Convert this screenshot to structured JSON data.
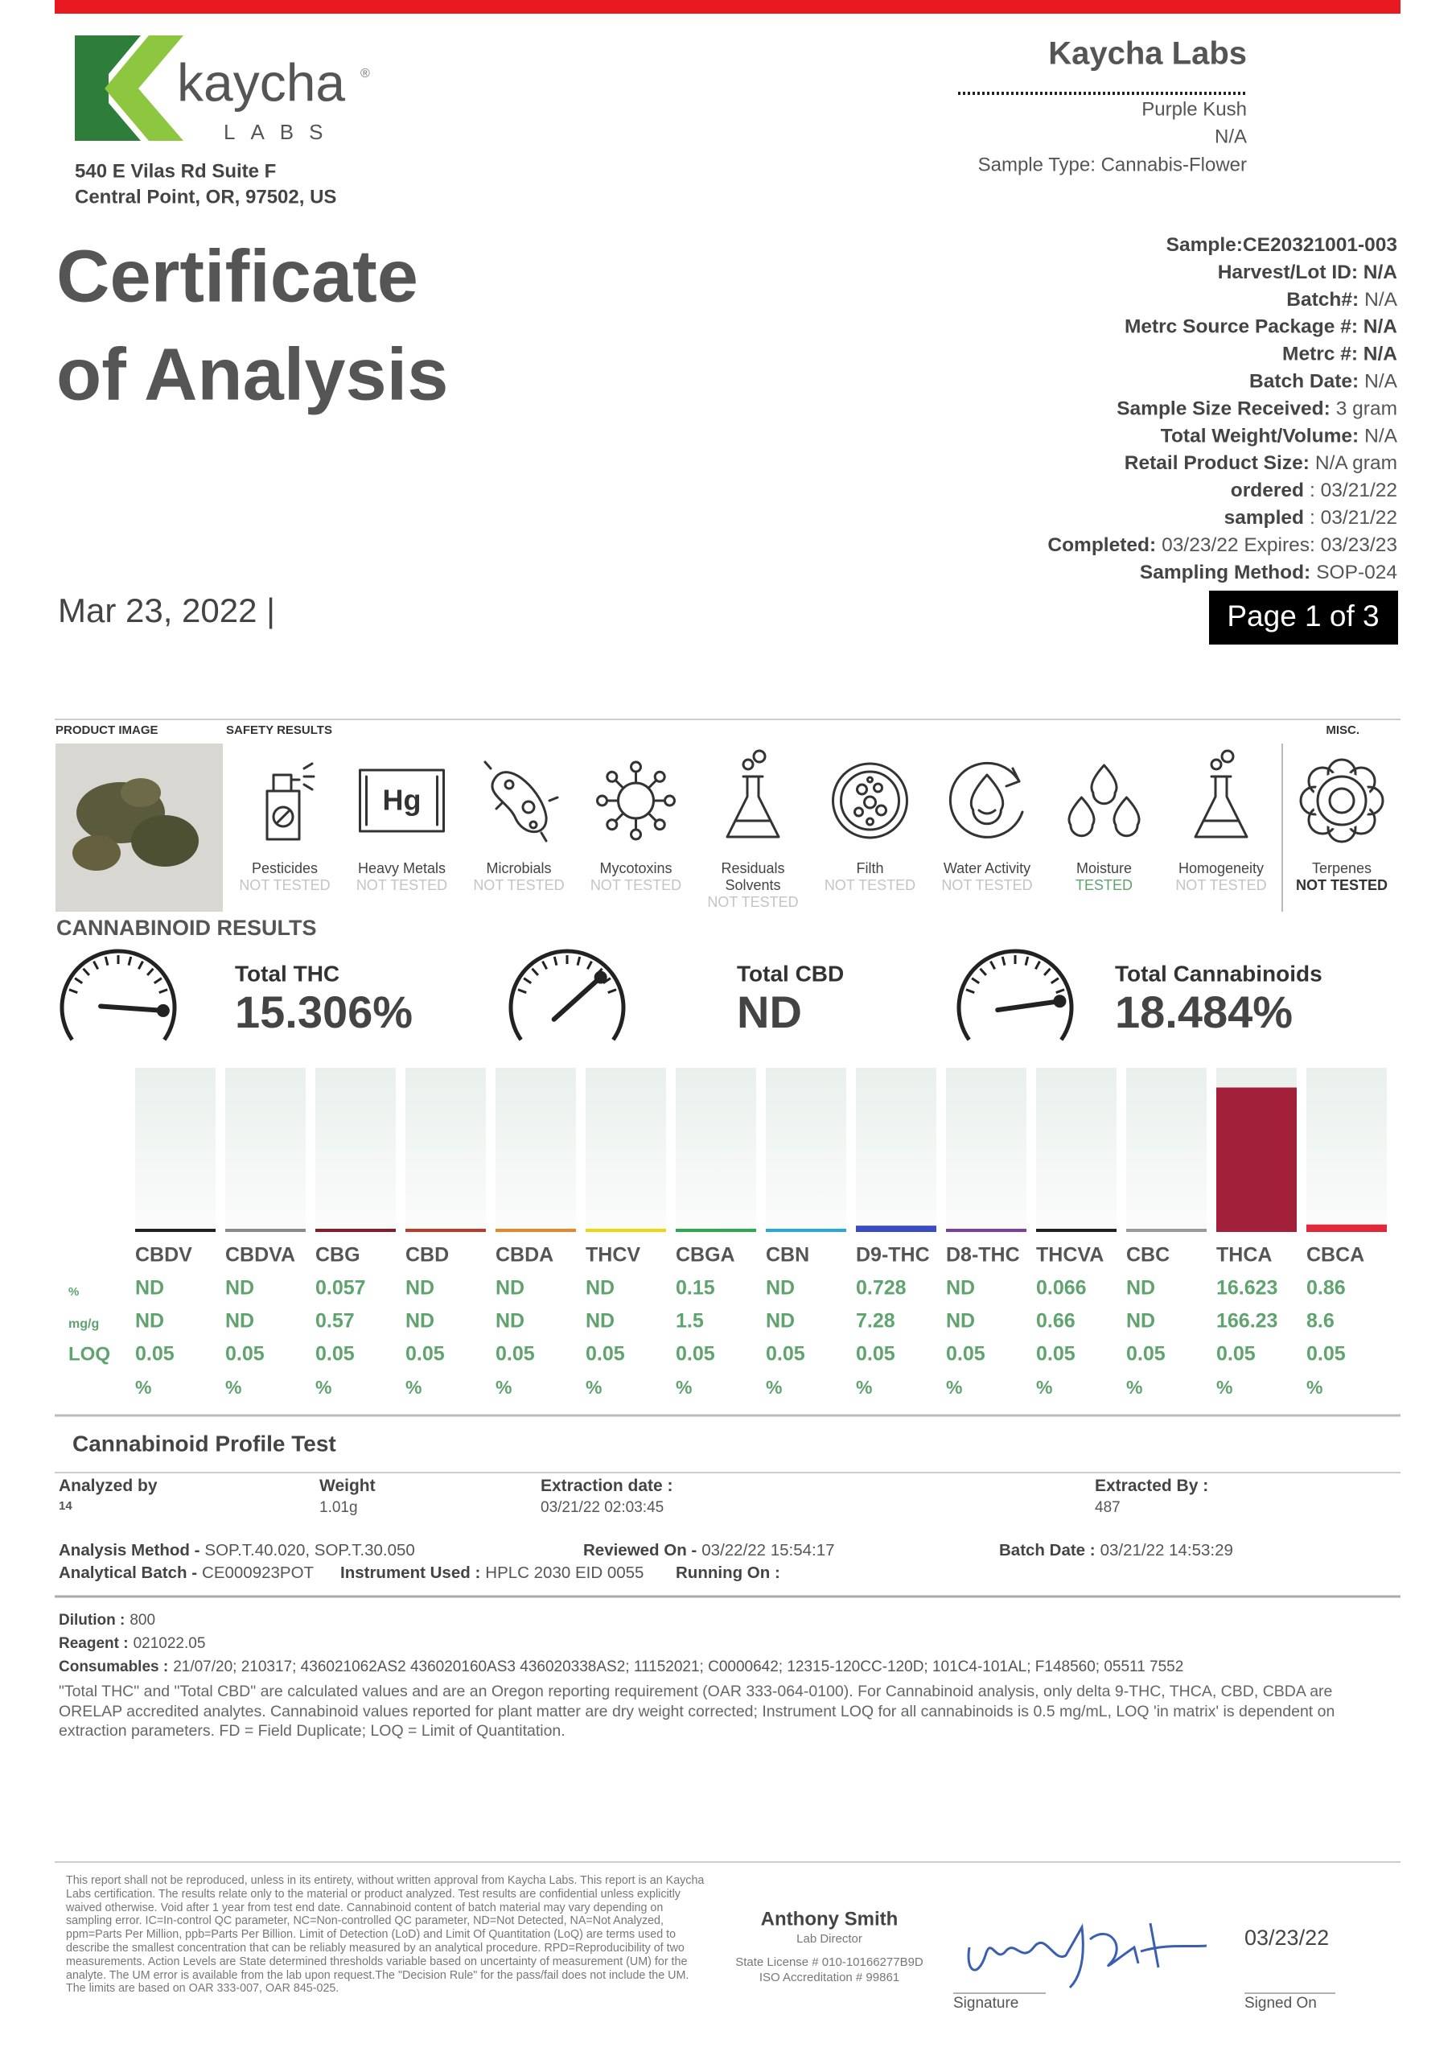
{
  "header": {
    "logo": {
      "name": "kaycha",
      "mark": "®",
      "sub": "LABS"
    },
    "address": [
      "540 E Vilas Rd Suite F",
      "Central Point, OR, 97502, US"
    ],
    "title": [
      "Certificate",
      "of Analysis"
    ],
    "date": "Mar 23, 2022 |",
    "lab": "Kaycha Labs",
    "product": "Purple Kush",
    "strain": "N/A",
    "sample_type": "Sample Type: Cannabis-Flower",
    "page": "Page 1 of 3"
  },
  "sample_info": [
    {
      "label": "Sample:CE20321001-003"
    },
    {
      "label": "Harvest/Lot ID: N/A"
    },
    {
      "label": "Batch#:",
      "value": "N/A"
    },
    {
      "label": "Metrc Source Package #: N/A"
    },
    {
      "label": "Metrc #: N/A"
    },
    {
      "label": "Batch Date:",
      "value": "N/A"
    },
    {
      "label": "Sample Size Received:",
      "value": "3 gram"
    },
    {
      "label": "Total Weight/Volume:",
      "value": "N/A"
    },
    {
      "label": "Retail Product Size:",
      "value": "N/A gram"
    },
    {
      "label": "ordered",
      "value": ": 03/21/22"
    },
    {
      "label": "sampled",
      "value": ": 03/21/22"
    },
    {
      "label": "Completed:",
      "value": "03/23/22 Expires: 03/23/23"
    },
    {
      "label": "Sampling Method:",
      "value": "SOP-024"
    }
  ],
  "safety": {
    "product_image_label": "PRODUCT IMAGE",
    "label": "SAFETY RESULTS",
    "misc_label": "MISC.",
    "tests": [
      {
        "name": [
          "Pesticides"
        ],
        "status": "NOT TESTED",
        "color": "#c4c4c4"
      },
      {
        "name": [
          "Heavy Metals"
        ],
        "status": "NOT TESTED",
        "color": "#c4c4c4",
        "symbol": "Hg"
      },
      {
        "name": [
          "Microbials"
        ],
        "status": "NOT TESTED",
        "color": "#c4c4c4"
      },
      {
        "name": [
          "Mycotoxins"
        ],
        "status": "NOT TESTED",
        "color": "#c4c4c4"
      },
      {
        "name": [
          "Residuals",
          "Solvents"
        ],
        "status": "NOT TESTED",
        "color": "#c4c4c4"
      },
      {
        "name": [
          "Filth"
        ],
        "status": "NOT TESTED",
        "color": "#c4c4c4"
      },
      {
        "name": [
          "Water Activity"
        ],
        "status": "NOT TESTED",
        "color": "#c4c4c4"
      },
      {
        "name": [
          "Moisture"
        ],
        "status": "TESTED",
        "color": "#5fa36f"
      },
      {
        "name": [
          "Homogeneity"
        ],
        "status": "NOT TESTED",
        "color": "#c4c4c4"
      }
    ],
    "misc": [
      {
        "name": [
          "Terpenes"
        ],
        "status": "NOT TESTED",
        "color": "#333333"
      }
    ]
  },
  "cannabinoids": {
    "title": "CANNABINOID RESULTS",
    "totals": [
      {
        "label": "Total THC",
        "value": "15.306%"
      },
      {
        "label": "Total CBD",
        "value": "ND"
      },
      {
        "label": "Total Cannabinoids",
        "value": "18.484%"
      }
    ],
    "row_labels": {
      "percent": "%",
      "mg_g": "mg/g",
      "loq": "LOQ"
    },
    "items": [
      {
        "name": "CBDV",
        "color": "#222222",
        "percent": "ND",
        "mg_g": "ND",
        "loq": 0.05,
        "loq_unit": "%"
      },
      {
        "name": "CBDVA",
        "color": "#8a8a8a",
        "percent": "ND",
        "mg_g": "ND",
        "loq": 0.05,
        "loq_unit": "%"
      },
      {
        "name": "CBG",
        "color": "#8b1a2b",
        "percent": 0.057,
        "mg_g": 0.57,
        "loq": 0.05,
        "loq_unit": "%"
      },
      {
        "name": "CBD",
        "color": "#c0392b",
        "percent": "ND",
        "mg_g": "ND",
        "loq": 0.05,
        "loq_unit": "%"
      },
      {
        "name": "CBDA",
        "color": "#e8862a",
        "percent": "ND",
        "mg_g": "ND",
        "loq": 0.05,
        "loq_unit": "%"
      },
      {
        "name": "THCV",
        "color": "#f2d50f",
        "percent": "ND",
        "mg_g": "ND",
        "loq": 0.05,
        "loq_unit": "%"
      },
      {
        "name": "CBGA",
        "color": "#2fa84f",
        "percent": 0.15,
        "mg_g": 1.5,
        "loq": 0.05,
        "loq_unit": "%"
      },
      {
        "name": "CBN",
        "color": "#2aa7e0",
        "percent": "ND",
        "mg_g": "ND",
        "loq": 0.05,
        "loq_unit": "%"
      },
      {
        "name": "D9-THC",
        "color": "#3b4bc8",
        "percent": 0.728,
        "mg_g": 7.28,
        "loq": 0.05,
        "loq_unit": "%"
      },
      {
        "name": "D8-THC",
        "color": "#7b3fa0",
        "percent": "ND",
        "mg_g": "ND",
        "loq": 0.05,
        "loq_unit": "%"
      },
      {
        "name": "THCVA",
        "color": "#222222",
        "percent": 0.066,
        "mg_g": 0.66,
        "loq": 0.05,
        "loq_unit": "%"
      },
      {
        "name": "CBC",
        "color": "#9a9a9a",
        "percent": "ND",
        "mg_g": "ND",
        "loq": 0.05,
        "loq_unit": "%"
      },
      {
        "name": "THCA",
        "color": "#a3203a",
        "percent": 16.623,
        "mg_g": 166.23,
        "loq": 0.05,
        "loq_unit": "%"
      },
      {
        "name": "CBCA",
        "color": "#e0283a",
        "percent": 0.86,
        "mg_g": 8.6,
        "loq": 0.05,
        "loq_unit": "%"
      }
    ]
  },
  "profile": {
    "title": "Cannabinoid Profile Test",
    "fields": [
      {
        "label": "Analyzed by",
        "value": "14"
      },
      {
        "label": "Weight",
        "value": "1.01g"
      },
      {
        "label": "Extraction date :",
        "value": "03/21/22 02:03:45"
      },
      {
        "label": "Extracted By :",
        "value": "487"
      }
    ],
    "details": [
      [
        {
          "label": "Analysis Method -",
          "value": "SOP.T.40.020, SOP.T.30.050"
        },
        {
          "label": "Reviewed On -",
          "value": "03/22/22 15:54:17"
        },
        {
          "label": "Batch Date :",
          "value": "03/21/22 14:53:29"
        }
      ],
      [
        {
          "label": "Analytical Batch -",
          "value": "CE000923POT"
        },
        {
          "label": "Instrument Used :",
          "value": "HPLC 2030 EID 0055"
        },
        {
          "label": "Running On :"
        }
      ]
    ],
    "reagents": [
      {
        "label": "Dilution :",
        "value": "800"
      },
      {
        "label": "Reagent :",
        "value": "021022.05"
      },
      {
        "label": "Consumables :",
        "value": "21/07/20; 210317; 436021062AS2 436020160AS3 436020338AS2; 11152021; C0000642; 12315-120CC-120D; 101C4-101AL; F148560; 05511 7552"
      }
    ],
    "note": "\"Total THC\" and \"Total CBD\" are calculated values and are an Oregon reporting requirement (OAR 333-064-0100). For Cannabinoid analysis, only delta 9-THC, THCA, CBD, CBDA are ORELAP accredited analytes. Cannabinoid values reported for plant matter are dry weight corrected; Instrument LOQ for all cannabinoids is 0.5 mg/mL, LOQ 'in matrix' is dependent on extraction parameters. FD = Field Duplicate; LOQ = Limit of Quantitation."
  },
  "footer": {
    "disclaimer": "This report shall not be reproduced, unless in its entirety, without written approval from Kaycha Labs. This report is an Kaycha Labs certification. The results relate only to the material or product analyzed. Test results are confidential unless explicitly waived otherwise. Void after 1 year from test end date. Cannabinoid content of batch material may vary depending on sampling error. IC=In-control QC parameter, NC=Non-controlled QC parameter, ND=Not Detected, NA=Not Analyzed, ppm=Parts Per Million, ppb=Parts Per Billion. Limit of Detection (LoD) and Limit Of Quantitation (LoQ) are terms used to describe the smallest concentration that can be reliably measured by an analytical procedure. RPD=Reproducibility of two measurements. Action Levels are State determined thresholds variable based on uncertainty of measurement (UM) for the analyte. The UM error is available from the lab upon request.The \"Decision Rule\" for the pass/fail does not include the UM. The limits are based on OAR 333-007, OAR 845-025.",
    "signer": "Anthony Smith",
    "role": "Lab Director",
    "license": "State License # 010-10166277B9D",
    "iso": "ISO Accreditation # 99861",
    "date": "03/23/22",
    "signature_label": "Signature",
    "signed_on_label": "Signed On"
  }
}
